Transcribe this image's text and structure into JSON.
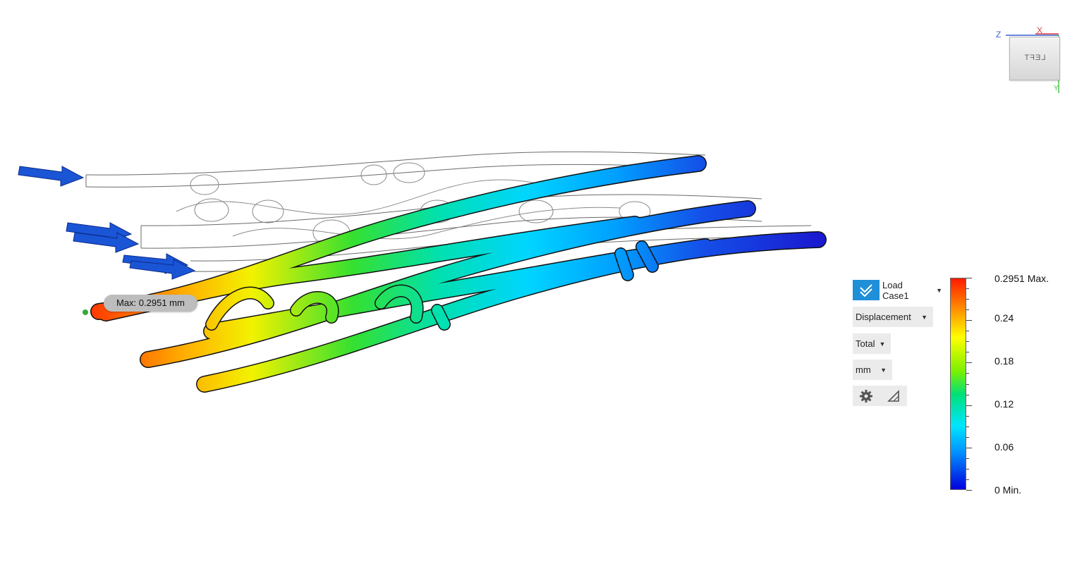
{
  "viewcube": {
    "face_label": "LEFT",
    "axis_z": "Z",
    "axis_x": "X",
    "axis_y": "Y"
  },
  "probe": {
    "max_label": "Max: 0.2951 mm"
  },
  "controls": {
    "load_case": "Load Case1",
    "result_type": "Displacement",
    "component": "Total",
    "unit": "mm",
    "settings_icon": "gear-icon",
    "legend_icon": "triangle-icon"
  },
  "legend": {
    "labels": [
      "0.2951 Max.",
      "0.24",
      "0.18",
      "0.12",
      "0.06",
      "0 Min."
    ],
    "colors": {
      "max": "#ff1a00",
      "min": "#0000dd"
    }
  },
  "colors": {
    "accent": "#1f8fd8",
    "load_arrow": "#1a55d6"
  }
}
